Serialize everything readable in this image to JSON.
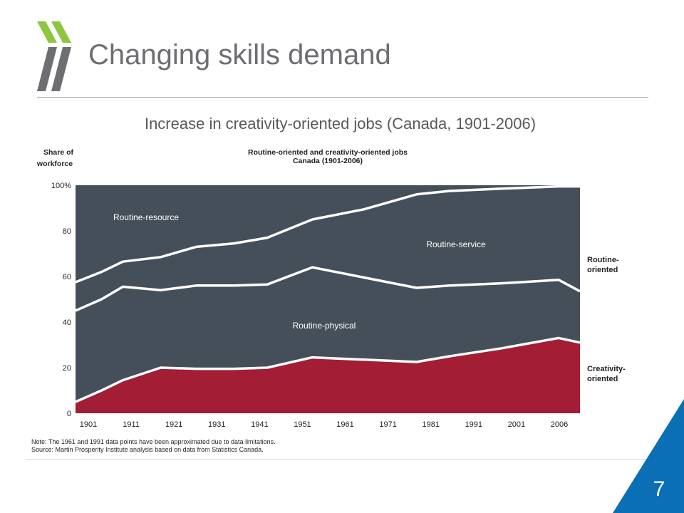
{
  "slide": {
    "title": "Changing skills demand",
    "subtitle": "Increase in creativity-oriented jobs (Canada, 1901-2006)",
    "page_number": "7",
    "note_line1": "Note: The 1961 and 1991 data points have been approximated due to data limitations.",
    "note_line2": "Source: Martin Prosperity Institute analysis based on data from Statistics Canada."
  },
  "colors": {
    "title_gray": "#6d6e71",
    "logo_green": "#8dc63f",
    "logo_gray": "#6d6e71",
    "routine_fill": "#454f59",
    "creativity_fill": "#a31d35",
    "corner_blue": "#0a6fb4"
  },
  "chart_data": {
    "type": "area",
    "title": "Routine-oriented and creativity-oriented jobs",
    "subtitle": "Canada (1901-2006)",
    "ylabel": "Share of workforce",
    "xlabel": "",
    "ylim": [
      0,
      100
    ],
    "yticks": [
      0,
      20,
      40,
      60,
      80,
      100
    ],
    "ytick_labels": [
      "0",
      "20",
      "40",
      "60",
      "80",
      "100%"
    ],
    "categories": [
      "1901",
      "1911",
      "1921",
      "1931",
      "1941",
      "1951",
      "1961",
      "1971",
      "1981",
      "1991",
      "2001",
      "2006"
    ],
    "x": [
      1901,
      1906.5,
      1911,
      1919,
      1926.5,
      1934.5,
      1941.5,
      1951,
      1962,
      1973,
      1980,
      1991,
      2003,
      2007.5
    ],
    "series": [
      {
        "name": "Creativity-oriented",
        "values": [
          5,
          10,
          14.5,
          20,
          19.5,
          19.5,
          20,
          24.5,
          23.5,
          22.5,
          25,
          28.5,
          33,
          31
        ]
      },
      {
        "name": "Routine-physical",
        "values": [
          45,
          50,
          55.5,
          54,
          56,
          56,
          56.5,
          64,
          59.5,
          55,
          56,
          57,
          58.5,
          53.5
        ]
      },
      {
        "name": "Routine-service",
        "values": [
          57.5,
          62,
          66.5,
          68.5,
          73,
          74.5,
          77,
          85,
          89.5,
          96,
          97.5,
          98.5,
          99.5,
          99.5
        ]
      },
      {
        "name": "Routine-resource",
        "values": [
          100,
          100,
          100,
          100,
          100,
          100,
          100,
          100,
          100,
          100,
          100,
          100,
          100,
          100
        ]
      }
    ],
    "area_labels": [
      "Routine-resource",
      "Routine-service",
      "Routine-physical"
    ],
    "right_labels": [
      {
        "line1": "Routine-",
        "line2": "oriented"
      },
      {
        "line1": "Creativity-",
        "line2": "oriented"
      }
    ]
  }
}
